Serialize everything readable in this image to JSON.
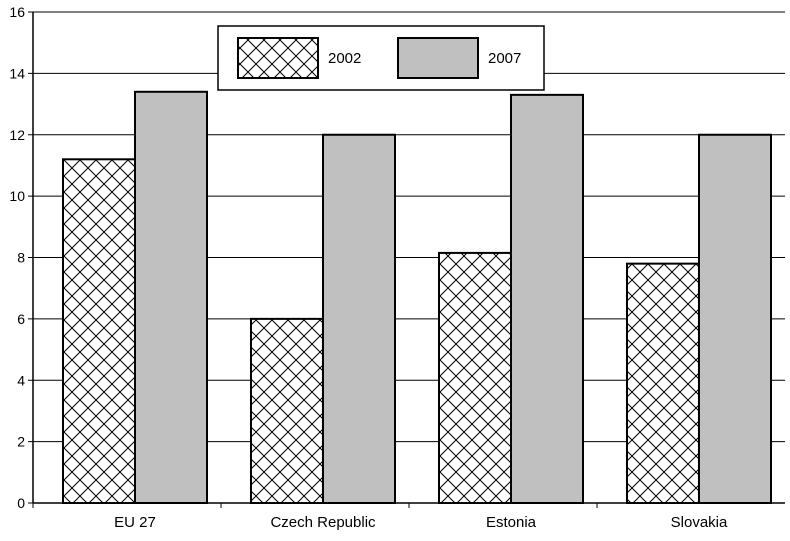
{
  "chart_data": {
    "type": "bar",
    "title": "",
    "xlabel": "",
    "ylabel": "",
    "categories": [
      "EU 27",
      "Czech Republic",
      "Estonia",
      "Slovakia"
    ],
    "series": [
      {
        "name": "2002",
        "values": [
          11.2,
          6.0,
          8.15,
          7.8
        ],
        "fill": "crosshatch"
      },
      {
        "name": "2007",
        "values": [
          13.4,
          12.0,
          13.3,
          12.0
        ],
        "fill": "#c0c0c0"
      }
    ],
    "ylim": [
      0,
      16
    ],
    "yticks": [
      0,
      2,
      4,
      6,
      8,
      10,
      12,
      14,
      16
    ],
    "grid": "horizontal",
    "legend_position": "top-center"
  },
  "colors": {
    "bar_2007": "#c0c0c0",
    "hatch_lines": "#000000",
    "grid": "#000000",
    "background": "#ffffff"
  }
}
